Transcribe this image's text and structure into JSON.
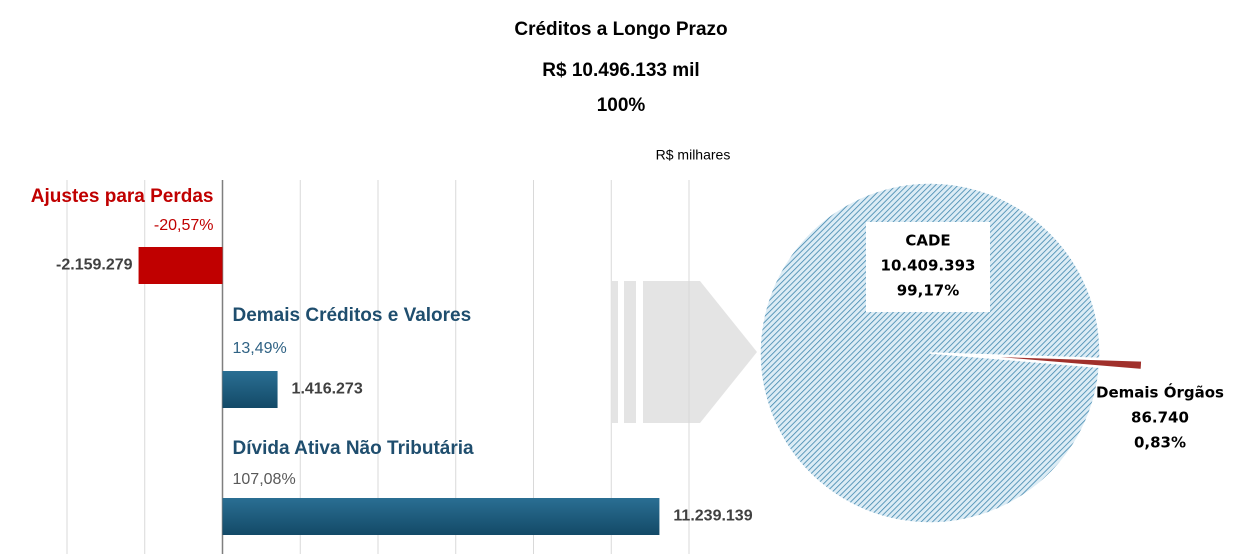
{
  "header": {
    "title": "Créditos a Longo Prazo",
    "total": "R$ 10.496.133 mil",
    "percent": "100%",
    "unit": "R$ milhares"
  },
  "chart_data": [
    {
      "type": "bar",
      "orientation": "horizontal",
      "categories": [
        "Ajustes para Perdas",
        "Demais Créditos e Valores",
        "Dívida Ativa Não Tributária"
      ],
      "values": [
        -2159279,
        1416273,
        11239139
      ],
      "value_labels": [
        "-2.159.279",
        "1.416.273",
        "11.239.139"
      ],
      "percent_labels": [
        "-20,57%",
        "13,49%",
        "107,08%"
      ],
      "colors": [
        "#c00000",
        "#1d5b7c",
        "#1d5b7c"
      ],
      "label_colors": [
        "#c00000",
        "#1f4e6e",
        "#1f4e6e"
      ],
      "percent_colors": [
        "#c00000",
        "#2f6284",
        "#595959"
      ],
      "xlim": [
        -4000000,
        12000000
      ],
      "xticks": [
        -4000000,
        -2000000,
        0,
        2000000,
        4000000,
        6000000,
        8000000,
        10000000,
        12000000
      ],
      "grid": true
    },
    {
      "type": "pie",
      "categories": [
        "CADE",
        "Demais Órgãos"
      ],
      "values": [
        10409393,
        86740
      ],
      "value_labels": [
        "10.409.393",
        "86.740"
      ],
      "percent_labels": [
        "99,17%",
        "0,83%"
      ],
      "colors": [
        "#9fcbe0",
        "#a0302b"
      ]
    }
  ]
}
